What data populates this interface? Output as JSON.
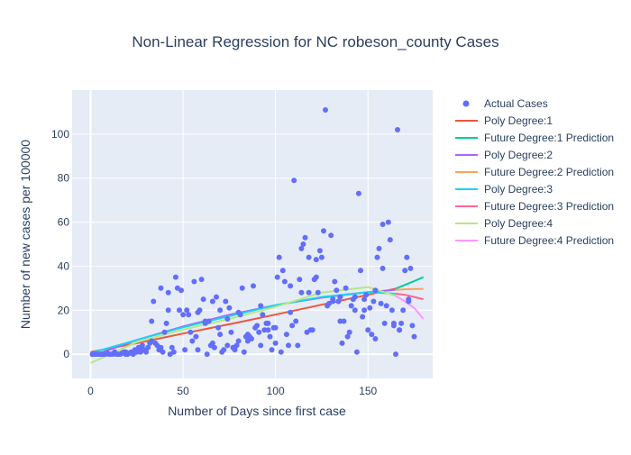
{
  "chart_data": {
    "type": "scatter",
    "title": "Non-Linear Regression for NC robeson_county Cases",
    "xlabel": "Number of Days since first case",
    "ylabel": "Number of new cases per 100000",
    "xlim": [
      -10,
      185
    ],
    "ylim": [
      -11,
      120
    ],
    "x_ticks": [
      0,
      50,
      100,
      150
    ],
    "y_ticks": [
      0,
      20,
      40,
      60,
      80,
      100
    ],
    "grid": true,
    "legend_position": "right",
    "colors": {
      "plot_bg": "#e5ecf6",
      "scatter": "#636efa",
      "poly1": "#ef553b",
      "future1": "#00cc96",
      "poly2": "#ab63fa",
      "future2": "#ffa15a",
      "poly3": "#19d3f3",
      "future3": "#ff6692",
      "poly4": "#b6e880",
      "future4": "#ff97ff"
    },
    "scatter_series": {
      "name": "Actual Cases",
      "color": "#636efa",
      "x": [
        1,
        2,
        3,
        4,
        5,
        6,
        7,
        8,
        9,
        10,
        11,
        12,
        13,
        14,
        15,
        16,
        17,
        18,
        19,
        20,
        21,
        22,
        23,
        24,
        25,
        26,
        27,
        28,
        29,
        30,
        31,
        32,
        33,
        34,
        35,
        36,
        37,
        38,
        39,
        40,
        41,
        42,
        43,
        44,
        45,
        46,
        47,
        48,
        49,
        50,
        51,
        52,
        53,
        54,
        55,
        56,
        57,
        58,
        59,
        60,
        61,
        62,
        63,
        64,
        65,
        66,
        67,
        68,
        69,
        70,
        71,
        72,
        73,
        74,
        75,
        76,
        77,
        78,
        79,
        80,
        81,
        82,
        83,
        84,
        85,
        86,
        87,
        88,
        89,
        90,
        91,
        92,
        93,
        94,
        95,
        96,
        97,
        98,
        99,
        100,
        101,
        102,
        103,
        104,
        105,
        106,
        107,
        108,
        109,
        110,
        111,
        112,
        113,
        114,
        115,
        116,
        117,
        118,
        119,
        120,
        121,
        122,
        123,
        124,
        125,
        126,
        127,
        128,
        129,
        130,
        131,
        132,
        133,
        134,
        135,
        136,
        137,
        138,
        139,
        140,
        141,
        142,
        143,
        144,
        145,
        146,
        147,
        148,
        149,
        150,
        151,
        152,
        153,
        154,
        155,
        156,
        157,
        158,
        159,
        160,
        161,
        162,
        163,
        164,
        165,
        166,
        167,
        168,
        169,
        170,
        171,
        172,
        173,
        174,
        175
      ],
      "y": [
        0,
        0,
        0,
        0,
        0,
        0,
        0,
        0,
        0.5,
        0,
        0,
        0,
        1,
        0,
        0,
        0,
        0.5,
        1,
        0,
        0,
        0.5,
        1,
        0,
        2,
        1,
        3,
        1,
        4,
        2,
        1,
        3,
        5,
        15,
        24,
        5,
        4,
        2,
        30,
        1,
        10,
        14,
        20,
        0,
        3,
        1,
        35,
        30,
        20,
        29,
        18,
        2,
        20,
        18,
        10,
        6,
        33,
        8,
        2,
        20,
        34,
        25,
        15,
        0,
        15,
        4,
        5,
        3,
        26,
        12,
        20,
        1,
        2,
        24,
        4,
        21,
        10,
        3,
        2,
        4,
        6,
        18,
        30,
        1,
        8,
        6,
        8,
        7,
        31,
        12,
        13,
        10,
        22,
        18,
        11,
        14,
        14,
        8,
        2,
        12,
        12,
        35,
        44,
        1,
        38,
        33,
        9,
        4,
        19,
        13,
        79,
        15,
        4,
        34,
        48,
        50,
        53,
        10,
        44,
        11,
        11,
        34,
        35,
        28,
        47,
        44,
        56,
        111,
        22,
        23,
        54,
        24,
        33,
        29,
        24,
        26,
        5,
        15,
        30,
        8,
        10,
        22,
        25,
        20,
        1,
        73,
        38,
        17,
        20,
        27,
        11,
        21,
        9,
        24,
        7,
        44,
        48,
        23,
        59,
        14,
        22,
        60,
        52,
        20,
        14,
        0,
        102,
        11,
        14,
        20,
        38,
        44,
        25,
        39,
        13,
        8
      ],
      "x_extra": [
        19,
        27,
        33,
        38,
        42,
        58,
        62,
        66,
        70,
        74,
        80,
        85,
        92,
        96,
        100,
        108,
        114,
        118,
        122,
        131,
        135,
        143,
        148,
        154,
        158,
        164,
        167,
        172
      ],
      "y_extra": [
        1,
        2,
        6,
        3,
        28,
        19,
        14,
        24,
        9,
        16,
        19,
        9,
        4,
        11,
        5,
        31,
        28,
        28,
        43,
        25,
        15,
        26,
        25,
        29,
        39,
        13,
        11,
        24
      ]
    },
    "series": [
      {
        "name": "Poly Degree:1",
        "color": "#ef553b",
        "x": [
          0,
          25,
          50,
          75,
          100,
          125,
          150,
          165
        ],
        "values": [
          1,
          5,
          9.4,
          13.6,
          18,
          22.5,
          27,
          29.8
        ]
      },
      {
        "name": "Future Degree:1 Prediction",
        "color": "#00cc96",
        "x": [
          165,
          170,
          175,
          180
        ],
        "values": [
          29.8,
          31.5,
          33.2,
          35
        ]
      },
      {
        "name": "Poly Degree:2",
        "color": "#ab63fa",
        "x": [
          0,
          25,
          50,
          75,
          100,
          125,
          150,
          165
        ],
        "values": [
          -1,
          6.5,
          12.6,
          17.9,
          22.3,
          25.7,
          28.2,
          29.3
        ]
      },
      {
        "name": "Future Degree:2 Prediction",
        "color": "#ffa15a",
        "x": [
          165,
          170,
          175,
          180
        ],
        "values": [
          29.3,
          29.5,
          29.6,
          29.7
        ]
      },
      {
        "name": "Poly Degree:3",
        "color": "#19d3f3",
        "x": [
          0,
          25,
          50,
          75,
          100,
          125,
          150,
          165
        ],
        "values": [
          0.5,
          6.5,
          12.2,
          17.3,
          22.3,
          26,
          28.2,
          27.5
        ]
      },
      {
        "name": "Future Degree:3 Prediction",
        "color": "#ff6692",
        "x": [
          165,
          170,
          175,
          180
        ],
        "values": [
          27.5,
          27,
          26,
          25
        ]
      },
      {
        "name": "Poly Degree:4",
        "color": "#b6e880",
        "x": [
          0,
          25,
          50,
          75,
          100,
          125,
          150,
          165
        ],
        "values": [
          -4,
          5.5,
          11.2,
          16,
          21.5,
          28,
          30.5,
          26.5
        ]
      },
      {
        "name": "Future Degree:4 Prediction",
        "color": "#ff97ff",
        "x": [
          165,
          170,
          175,
          180
        ],
        "values": [
          26.5,
          24,
          21,
          16
        ]
      }
    ]
  }
}
